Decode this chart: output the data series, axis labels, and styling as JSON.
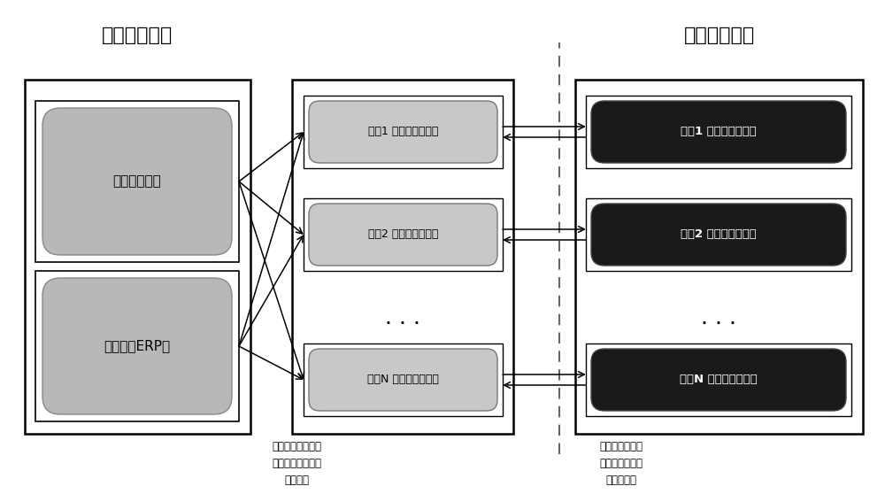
{
  "title_left": "企业内部系统",
  "title_right": "银行内部系统",
  "left_box_label1": "现金管理系统",
  "left_box_label2": "跨行通、ERP等",
  "client_labels": [
    "银行1 企业前置客户端",
    "银行2 企业前置客户端",
    "银行N 企业前置客户端"
  ],
  "server_labels": [
    "银行1 银行前置服务端",
    "银行2 银行前置服务端",
    "银行N 银行前置服务端"
  ],
  "annotation_left": "企业端与银行部署\n的企业前置客户端\n交换数据",
  "annotation_right": "企业前置客户端\n与银行前置服务\n端交换数据",
  "bg_color": "#ffffff",
  "outer_box_color": "#000000",
  "inner_box_left_fill": "#b8b8b8",
  "inner_box_left_border": "#000000",
  "client_box_fill": "#c8c8c8",
  "client_box_border": "#666666",
  "server_box_fill": "#1a1a1a",
  "server_text_color": "#ffffff",
  "client_text_color": "#000000",
  "arrow_color": "#000000",
  "dashed_line_color": "#666666"
}
